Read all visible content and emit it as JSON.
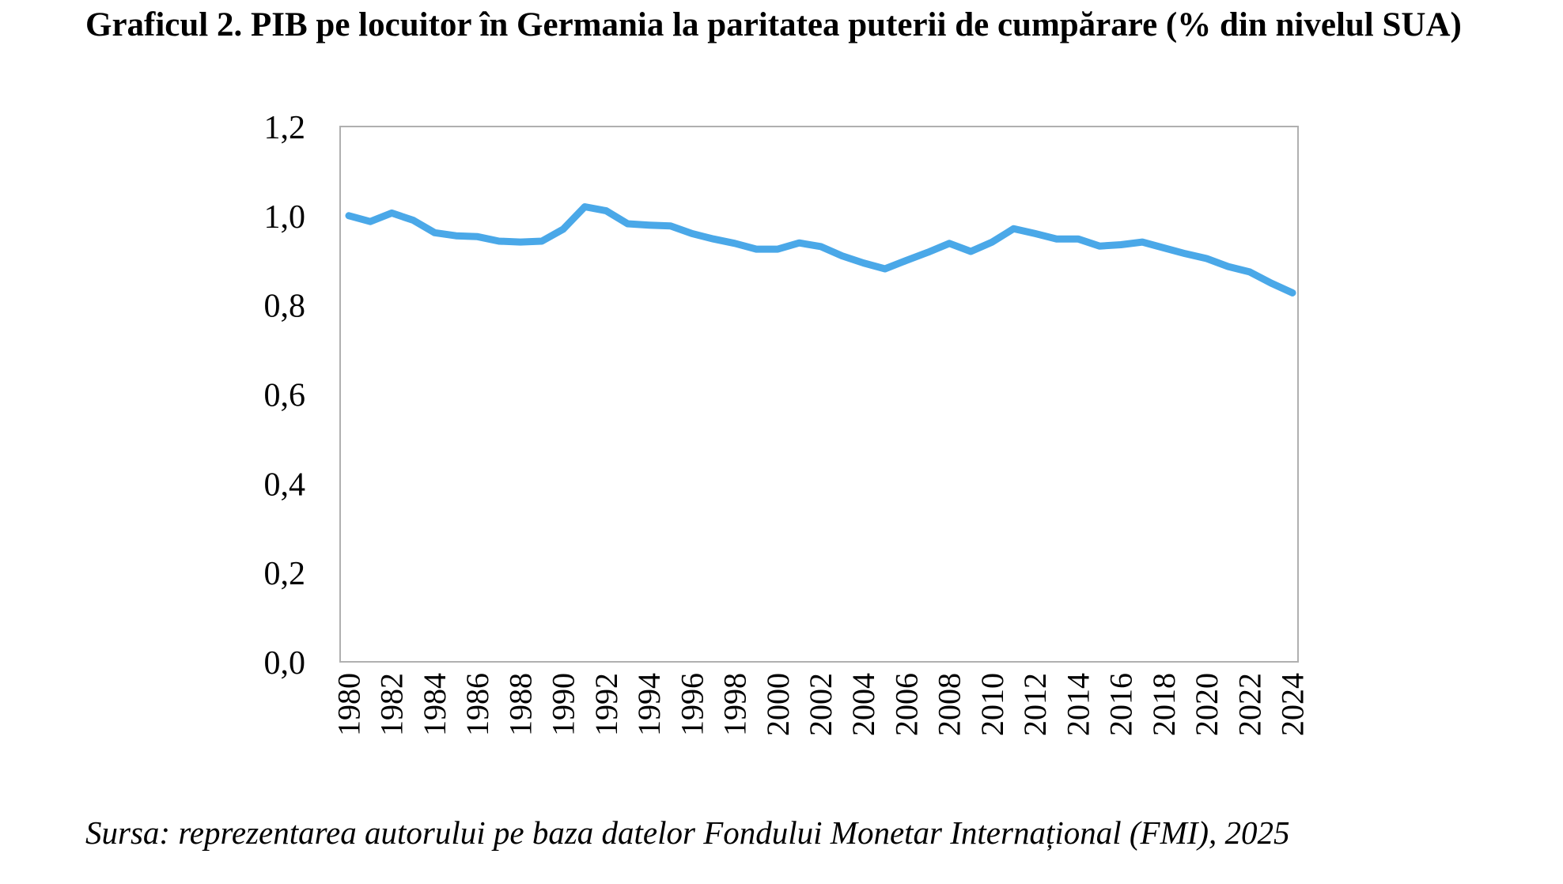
{
  "chart_data": {
    "type": "line",
    "title": "Graficul 2. PIB pe locuitor în Germania la paritatea puterii de cumpărare (% din nivelul SUA)",
    "xlabel": "",
    "ylabel": "",
    "ylim": [
      0,
      1.2
    ],
    "y_ticks": [
      "0,0",
      "0,2",
      "0,4",
      "0,6",
      "0,8",
      "1,0",
      "1,2"
    ],
    "x_tick_labels": [
      "1980",
      "1982",
      "1984",
      "1986",
      "1988",
      "1990",
      "1992",
      "1994",
      "1996",
      "1998",
      "2000",
      "2002",
      "2004",
      "2006",
      "2008",
      "2010",
      "2012",
      "2014",
      "2016",
      "2018",
      "2020",
      "2022",
      "2024"
    ],
    "grid": false,
    "legend": "none",
    "line_color": "#4aa8e8",
    "x": [
      1980,
      1981,
      1982,
      1983,
      1984,
      1985,
      1986,
      1987,
      1988,
      1989,
      1990,
      1991,
      1992,
      1993,
      1994,
      1995,
      1996,
      1997,
      1998,
      1999,
      2000,
      2001,
      2002,
      2003,
      2004,
      2005,
      2006,
      2007,
      2008,
      2009,
      2010,
      2011,
      2012,
      2013,
      2014,
      2015,
      2016,
      2017,
      2018,
      2019,
      2020,
      2021,
      2022,
      2023,
      2024
    ],
    "series": [
      {
        "values": [
          1.0,
          0.987,
          1.006,
          0.99,
          0.962,
          0.955,
          0.953,
          0.943,
          0.941,
          0.943,
          0.97,
          1.02,
          1.011,
          0.982,
          0.979,
          0.977,
          0.96,
          0.948,
          0.938,
          0.925,
          0.925,
          0.939,
          0.931,
          0.91,
          0.894,
          0.881,
          0.9,
          0.918,
          0.938,
          0.92,
          0.941,
          0.971,
          0.96,
          0.948,
          0.948,
          0.932,
          0.935,
          0.941,
          0.928,
          0.915,
          0.904,
          0.886,
          0.874,
          0.849,
          0.827
        ]
      }
    ]
  },
  "source": "Sursa: reprezentarea autorului pe baza datelor Fondului Monetar Internațional (FMI), 2025"
}
